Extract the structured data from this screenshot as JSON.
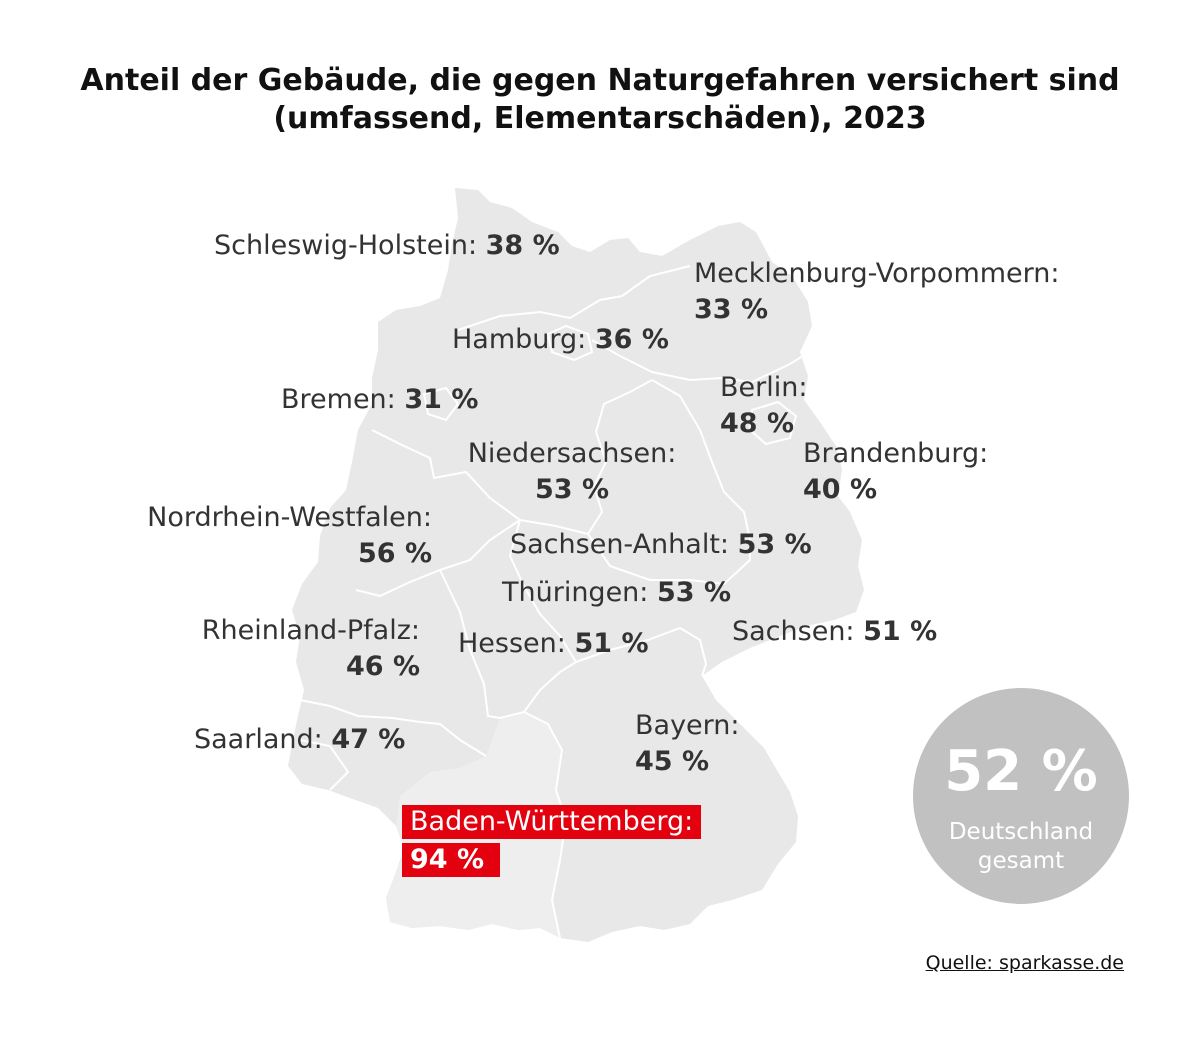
{
  "title": {
    "line1": "Anteil der Gebäude, die gegen Naturgefahren versichert sind",
    "line2": "(umfassend, Elementarschäden), 2023"
  },
  "states": [
    {
      "name": "Schleswig-Holstein:",
      "value": "38 %"
    },
    {
      "name": "Mecklenburg-Vorpommern:",
      "value": "33 %"
    },
    {
      "name": "Hamburg:",
      "value": "36 %"
    },
    {
      "name": "Bremen:",
      "value": "31 %"
    },
    {
      "name": "Berlin:",
      "value": "48 %"
    },
    {
      "name": "Niedersachsen:",
      "value": "53 %"
    },
    {
      "name": "Brandenburg:",
      "value": "40 %"
    },
    {
      "name": "Nordrhein-Westfalen:",
      "value": "56 %"
    },
    {
      "name": "Sachsen-Anhalt:",
      "value": "53 %"
    },
    {
      "name": "Thüringen:",
      "value": "53 %"
    },
    {
      "name": "Rheinland-Pfalz:",
      "value": "46 %"
    },
    {
      "name": "Hessen:",
      "value": "51 %"
    },
    {
      "name": "Sachsen:",
      "value": "51 %"
    },
    {
      "name": "Bayern:",
      "value": "45 %"
    },
    {
      "name": "Saarland:",
      "value": "47 %"
    },
    {
      "name": "Baden-Württemberg:",
      "value": "94 %"
    }
  ],
  "highlight_state": "Baden-Württemberg",
  "total": {
    "value": "52 %",
    "label_line1": "Deutschland",
    "label_line2": "gesamt"
  },
  "source": "Quelle: sparkasse.de",
  "colors": {
    "map_fill": "#e8e8e8",
    "border": "#ffffff",
    "highlight": "#e3000f",
    "circle": "#c1c1c1",
    "text": "#333333"
  }
}
